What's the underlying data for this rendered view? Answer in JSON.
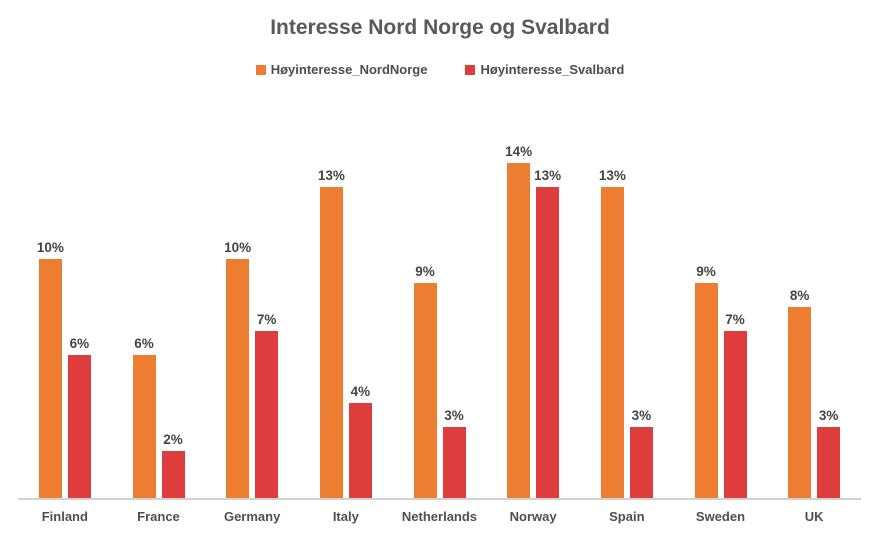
{
  "title": "Interesse Nord Norge og Svalbard",
  "legend": {
    "items": [
      {
        "label": "Høyinteresse_NordNorge",
        "color": "#ED7D31"
      },
      {
        "label": "Høyinteresse_Svalbard",
        "color": "#DE3D3E"
      }
    ]
  },
  "chart_data": {
    "type": "bar",
    "title": "Interesse Nord Norge og Svalbard",
    "categories": [
      "Finland",
      "France",
      "Germany",
      "Italy",
      "Netherlands",
      "Norway",
      "Spain",
      "Sweden",
      "UK"
    ],
    "series": [
      {
        "name": "Høyinteresse_NordNorge",
        "color": "#ED7D31",
        "values": [
          10,
          6,
          10,
          13,
          9,
          14,
          13,
          9,
          8
        ],
        "labels": [
          "10%",
          "6%",
          "10%",
          "13%",
          "9%",
          "14%",
          "13%",
          "9%",
          "8%"
        ]
      },
      {
        "name": "Høyinteresse_Svalbard",
        "color": "#DE3D3E",
        "values": [
          6,
          2,
          7,
          4,
          3,
          13,
          3,
          7,
          3
        ],
        "labels": [
          "6%",
          "2%",
          "7%",
          "4%",
          "3%",
          "13%",
          "3%",
          "7%",
          "3%"
        ]
      }
    ],
    "unit": "%",
    "xlabel": "",
    "ylabel": "",
    "ylim": [
      0,
      15
    ],
    "grid": false,
    "y_axis_visible": false,
    "legend_position": "top",
    "data_labels": true
  },
  "colors": {
    "title_text": "#595959",
    "data_label_text": "#444444",
    "category_label_text": "#4f4f4f",
    "axis_line": "#d2d2d2",
    "background": "#ffffff"
  }
}
